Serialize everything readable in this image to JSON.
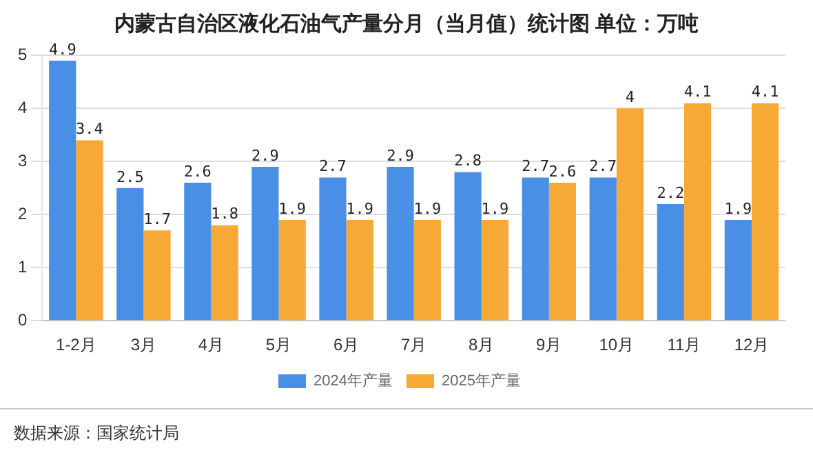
{
  "chart_data": {
    "type": "bar",
    "title": "内蒙古自治区液化石油气产量分月（当月值）统计图 单位：万吨",
    "categories": [
      "1-2月",
      "3月",
      "4月",
      "5月",
      "6月",
      "7月",
      "8月",
      "9月",
      "10月",
      "11月",
      "12月"
    ],
    "series": [
      {
        "name": "2024年产量",
        "color": "#4a8fe6",
        "values": [
          4.9,
          2.5,
          2.6,
          2.9,
          2.7,
          2.9,
          2.8,
          2.7,
          2.7,
          2.2,
          1.9
        ]
      },
      {
        "name": "2025年产量",
        "color": "#f7a935",
        "values": [
          3.4,
          1.7,
          1.8,
          1.9,
          1.9,
          1.9,
          1.9,
          2.6,
          4,
          4.1,
          4.1
        ]
      }
    ],
    "ylim": [
      0,
      5
    ],
    "yticks": [
      0,
      1,
      2,
      3,
      4,
      5
    ],
    "grid": "y",
    "legend": "bottom",
    "data_labels": true,
    "annotations": [
      "数据来源：国家统计局"
    ]
  }
}
